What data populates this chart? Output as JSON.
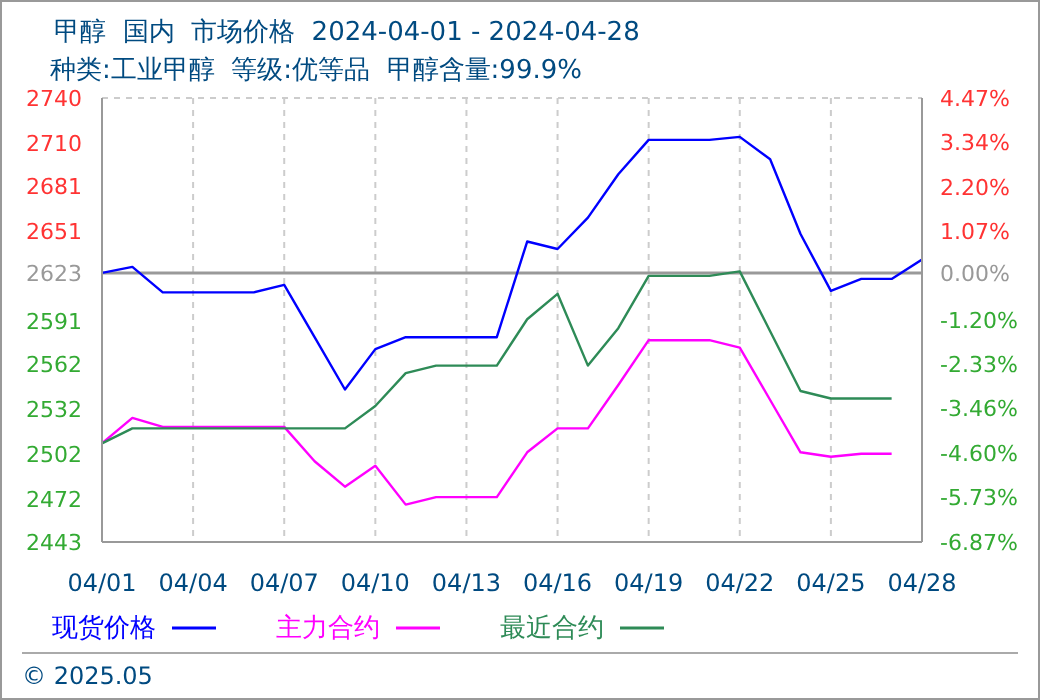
{
  "chart_data": {
    "type": "line",
    "title": "甲醇  国内  市场价格  2024-04-01 - 2024-04-28",
    "subtitle": "种类:工业甲醇  等级:优等品  甲醇含量:99.9%",
    "annotations": [
      "© 2025.05"
    ],
    "x": [
      "2024-04-01",
      "2024-04-02",
      "2024-04-03",
      "2024-04-04",
      "2024-04-05",
      "2024-04-06",
      "2024-04-07",
      "2024-04-08",
      "2024-04-09",
      "2024-04-10",
      "2024-04-11",
      "2024-04-12",
      "2024-04-13",
      "2024-04-14",
      "2024-04-15",
      "2024-04-16",
      "2024-04-17",
      "2024-04-18",
      "2024-04-19",
      "2024-04-20",
      "2024-04-21",
      "2024-04-22",
      "2024-04-23",
      "2024-04-24",
      "2024-04-25",
      "2024-04-26",
      "2024-04-27",
      "2024-04-28"
    ],
    "series": [
      {
        "name": "现货价格",
        "color": "#0000ff",
        "values": [
          2623,
          2627,
          2610,
          2610,
          2610,
          2610,
          2615,
          2580,
          2545,
          2572,
          2580,
          2580,
          2580,
          2580,
          2644,
          2639,
          2660,
          2689,
          2712,
          2712,
          2712,
          2714,
          2699,
          2649,
          2611,
          2619,
          2619,
          2632
        ]
      },
      {
        "name": "主力合约",
        "color": "#ff00ff",
        "values": [
          2509,
          2526,
          2520,
          2520,
          2520,
          2520,
          2520,
          2497,
          2480,
          2494,
          2468,
          2473,
          2473,
          2473,
          2503,
          2519,
          2519,
          2548,
          2578,
          2578,
          2578,
          2573,
          2538,
          2503,
          2500,
          2502,
          2502,
          null
        ]
      },
      {
        "name": "最近合约",
        "color": "#2e8b57",
        "values": [
          2509,
          2519,
          2519,
          2519,
          2519,
          2519,
          2519,
          2519,
          2519,
          2534,
          2556,
          2561,
          2561,
          2561,
          2592,
          2609,
          2561,
          2586,
          2621,
          2621,
          2621,
          2624,
          2584,
          2544,
          2539,
          2539,
          2539,
          null
        ]
      }
    ],
    "xlim": [
      "2024-04-01",
      "2024-04-28"
    ],
    "xticks": [
      {
        "value": "2024-04-01",
        "label": "04/01"
      },
      {
        "value": "2024-04-04",
        "label": "04/04"
      },
      {
        "value": "2024-04-07",
        "label": "04/07"
      },
      {
        "value": "2024-04-10",
        "label": "04/10"
      },
      {
        "value": "2024-04-13",
        "label": "04/13"
      },
      {
        "value": "2024-04-16",
        "label": "04/16"
      },
      {
        "value": "2024-04-19",
        "label": "04/19"
      },
      {
        "value": "2024-04-22",
        "label": "04/22"
      },
      {
        "value": "2024-04-25",
        "label": "04/25"
      },
      {
        "value": "2024-04-28",
        "label": "04/28"
      }
    ],
    "ylim": [
      2443,
      2740
    ],
    "yticks": [
      2443,
      2472,
      2502,
      2532,
      2562,
      2591,
      2623,
      2651,
      2681,
      2710,
      2740
    ],
    "y2lim": [
      -6.87,
      4.47
    ],
    "y2ticks": [
      {
        "value": -6.87,
        "label": "-6.87%"
      },
      {
        "value": -5.73,
        "label": "-5.73%"
      },
      {
        "value": -4.6,
        "label": "-4.60%"
      },
      {
        "value": -3.46,
        "label": "-3.46%"
      },
      {
        "value": -2.33,
        "label": "-2.33%"
      },
      {
        "value": -1.2,
        "label": "-1.20%"
      },
      {
        "value": 0,
        "label": "0.00%"
      },
      {
        "value": 1.07,
        "label": "1.07%"
      },
      {
        "value": 2.2,
        "label": "2.20%"
      },
      {
        "value": 3.34,
        "label": "3.34%"
      },
      {
        "value": 4.47,
        "label": "4.47%"
      }
    ],
    "ref_lines": [
      {
        "axis": "y",
        "value": 2623,
        "color": "#999999"
      }
    ],
    "grid": true,
    "line_style": "solid",
    "marker": "none",
    "legend": "bottom"
  }
}
